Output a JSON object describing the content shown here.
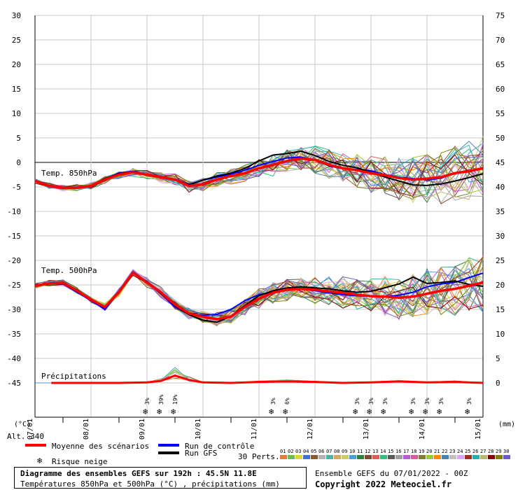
{
  "chart_data": {
    "type": "line",
    "x_dates": [
      "07/01",
      "08/01",
      "09/01",
      "10/01",
      "11/01",
      "12/01",
      "13/01",
      "14/01",
      "15/01"
    ],
    "left_axis_ticks": [
      30,
      25,
      20,
      15,
      10,
      5,
      0,
      -5,
      -10,
      -15,
      -20,
      -25,
      -30,
      -35,
      -40,
      -45
    ],
    "right_axis_ticks": [
      75,
      70,
      65,
      60,
      55,
      50,
      45,
      40,
      35,
      30,
      25,
      20,
      15,
      10,
      5,
      0
    ],
    "left_unit": "(°C)",
    "right_unit": "(mm)",
    "ylim_temp": [
      -45,
      30
    ],
    "ylim_precip": [
      0,
      75
    ],
    "x_hours_range": [
      0,
      192
    ],
    "panel_labels": {
      "t850": "Temp. 850hPa",
      "t500": "Temp. 500hPa",
      "precip": "Précipitations"
    },
    "altitude": "Alt. 340",
    "t850": {
      "hours": [
        0,
        6,
        12,
        18,
        24,
        30,
        36,
        42,
        48,
        54,
        60,
        66,
        72,
        78,
        84,
        90,
        96,
        102,
        108,
        114,
        120,
        126,
        132,
        138,
        144,
        150,
        156,
        162,
        168,
        174,
        180,
        186,
        192
      ],
      "mean": [
        -3.8,
        -4.8,
        -5.2,
        -5.2,
        -4.8,
        -3.5,
        -2.5,
        -2,
        -2.5,
        -3,
        -3.5,
        -4.8,
        -4.5,
        -3.5,
        -2.8,
        -2.2,
        -1.2,
        -0.5,
        0.3,
        0.8,
        0.5,
        -0.5,
        -1.2,
        -1.6,
        -2.2,
        -2.6,
        -3.2,
        -3.5,
        -3.3,
        -3,
        -2.2,
        -1.8,
        -1.2
      ],
      "control": [
        -3.8,
        -4.7,
        -5.2,
        -5.3,
        -4.9,
        -3.4,
        -2.2,
        -1.8,
        -2.4,
        -2.9,
        -3.4,
        -4.5,
        -3.6,
        -3,
        -2.4,
        -1.6,
        -0.6,
        0.2,
        0.9,
        1.1,
        0.4,
        -0.7,
        -1.3,
        -1.4,
        -1.7,
        -2.5,
        -3,
        -3.3,
        -3.6,
        -3.2,
        -2.2,
        -1.8,
        -1.2
      ],
      "gfs": [
        -3.8,
        -4.8,
        -5.2,
        -5.2,
        -4.8,
        -3.3,
        -2.3,
        -1.9,
        -2.5,
        -3.1,
        -3.5,
        -4.6,
        -3.6,
        -2.8,
        -2.2,
        -1.2,
        0.3,
        1.5,
        1.8,
        2.3,
        1.4,
        0.2,
        -0.6,
        -1.1,
        -2,
        -3,
        -3.8,
        -4.6,
        -4.7,
        -4.4,
        -3.8,
        -3.1,
        -2.3
      ]
    },
    "t500": {
      "hours": [
        0,
        6,
        12,
        18,
        24,
        30,
        36,
        42,
        48,
        54,
        60,
        66,
        72,
        78,
        84,
        90,
        96,
        102,
        108,
        114,
        120,
        126,
        132,
        138,
        144,
        150,
        156,
        162,
        168,
        174,
        180,
        186,
        192
      ],
      "mean": [
        -25.2,
        -24.7,
        -24.6,
        -26.2,
        -28,
        -29.5,
        -26.5,
        -22.5,
        -24.5,
        -26.5,
        -29,
        -30.8,
        -31.5,
        -32,
        -31.5,
        -29.5,
        -27.8,
        -26.6,
        -26,
        -25.8,
        -26,
        -26.3,
        -26.6,
        -27,
        -27.3,
        -27.4,
        -27.6,
        -27.4,
        -26.8,
        -26.2,
        -25.8,
        -25.2,
        -24.5
      ],
      "control": [
        -25.2,
        -24.7,
        -24.8,
        -26.5,
        -28.2,
        -30,
        -26.3,
        -22.6,
        -24.3,
        -26.8,
        -29.5,
        -31,
        -31.2,
        -31,
        -30,
        -28.2,
        -27,
        -26.5,
        -26,
        -25.8,
        -26.2,
        -26.6,
        -27,
        -27.2,
        -27.4,
        -27.4,
        -27.1,
        -26.5,
        -25.4,
        -24.8,
        -24.5,
        -23.5,
        -22.6
      ],
      "gfs": [
        -25.2,
        -24.7,
        -24.6,
        -26.1,
        -28,
        -29.5,
        -26.6,
        -22.5,
        -24.4,
        -26.4,
        -29.2,
        -31.1,
        -32.2,
        -32.6,
        -31.4,
        -29.2,
        -27.2,
        -26.2,
        -25.6,
        -25.4,
        -25.6,
        -25.8,
        -26.2,
        -26.5,
        -26.3,
        -25.6,
        -24.8,
        -23.4,
        -24.7,
        -24.5,
        -24.2,
        -24.9,
        -25.3
      ]
    },
    "precip_mean": {
      "hours": [
        0,
        12,
        24,
        36,
        48,
        54,
        60,
        66,
        72,
        84,
        96,
        108,
        120,
        132,
        144,
        156,
        168,
        180,
        192
      ],
      "values": [
        0,
        0,
        0,
        0,
        0.1,
        0.4,
        1.5,
        0.6,
        0.1,
        0,
        0.2,
        0.3,
        0.2,
        0,
        0.1,
        0.3,
        0.1,
        0.2,
        0
      ]
    },
    "snow_risk": [
      {
        "hour": 48,
        "pct": "3%"
      },
      {
        "hour": 54,
        "pct": "39%"
      },
      {
        "hour": 60,
        "pct": "19%"
      },
      {
        "hour": 102,
        "pct": "3%"
      },
      {
        "hour": 108,
        "pct": "6%"
      },
      {
        "hour": 138,
        "pct": "3%"
      },
      {
        "hour": 144,
        "pct": "3%"
      },
      {
        "hour": 150,
        "pct": "3%"
      },
      {
        "hour": 162,
        "pct": "3%"
      },
      {
        "hour": 168,
        "pct": "3%"
      },
      {
        "hour": 174,
        "pct": "3%"
      },
      {
        "hour": 186,
        "pct": "3%"
      }
    ],
    "legend": {
      "mean": "Moyenne des scénarios",
      "control": "Run de contrôle",
      "gfs": "Run GFS",
      "snow": "Risque neige",
      "perts": "30 Perts."
    },
    "colors": {
      "mean": "#ff0000",
      "control": "#0000ff",
      "gfs": "#000000",
      "snow": "#2a7fd4",
      "grid": "#c0c0c0",
      "zero_line": "#808080"
    },
    "perturbations": {
      "labels": [
        "01",
        "02",
        "03",
        "04",
        "05",
        "06",
        "07",
        "08",
        "09",
        "10",
        "11",
        "12",
        "13",
        "14",
        "15",
        "16",
        "17",
        "18",
        "19",
        "20",
        "21",
        "22",
        "23",
        "24",
        "25",
        "26",
        "27",
        "28",
        "29",
        "30"
      ],
      "colors": [
        "#e07b39",
        "#6cbf4a",
        "#d9d926",
        "#3f6fd9",
        "#8a5a2b",
        "#b3b3b3",
        "#4ab3a5",
        "#d6a85c",
        "#cccc66",
        "#4a9fd9",
        "#2f7f3f",
        "#7f4a2f",
        "#e05a5a",
        "#2fbf7f",
        "#5a5a5a",
        "#a0a0a0",
        "#b85ad9",
        "#d95aa0",
        "#7f7f2f",
        "#9acd32",
        "#ff8c00",
        "#4682b4",
        "#c0c0c0",
        "#e0a0ff",
        "#a52a2a",
        "#20b2aa",
        "#bdb76b",
        "#8b0000",
        "#808000",
        "#6a5acd"
      ]
    }
  },
  "footer": {
    "title": "Diagramme des ensembles GEFS sur 192h : 45.5N 11.8E",
    "subtitle": "Températures 850hPa et 500hPa (°C) , précipitations (mm)",
    "run": "Ensemble GEFS du 07/01/2022 - 00Z",
    "copyright": "Copyright 2022 Meteociel.fr"
  }
}
